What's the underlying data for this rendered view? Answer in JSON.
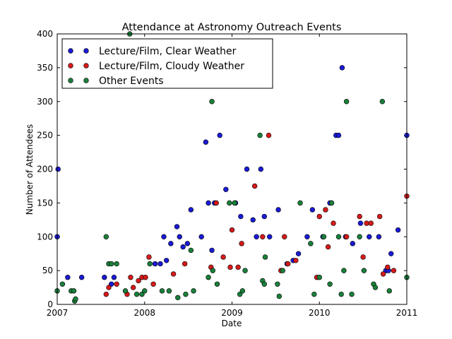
{
  "chart_data": {
    "type": "scatter",
    "title": "Attendance at Astronomy Outreach Events",
    "xlabel": "Date",
    "ylabel": "Number of Attendees",
    "xlim": [
      2007,
      2011
    ],
    "ylim": [
      0,
      400
    ],
    "x_ticks": [
      "2007",
      "2008",
      "2009",
      "2010",
      "2011"
    ],
    "y_ticks": [
      "0",
      "50",
      "100",
      "150",
      "200",
      "250",
      "300",
      "350",
      "400"
    ],
    "grid": false,
    "legend_position": "top-left",
    "series": [
      {
        "name": "Lecture/Film, Clear Weather",
        "color": "#1a1ad6",
        "points": [
          [
            2007.0,
            100
          ],
          [
            2007.01,
            200
          ],
          [
            2007.12,
            40
          ],
          [
            2007.28,
            40
          ],
          [
            2007.54,
            40
          ],
          [
            2007.62,
            30
          ],
          [
            2007.65,
            40
          ],
          [
            2008.12,
            60
          ],
          [
            2008.18,
            60
          ],
          [
            2008.22,
            100
          ],
          [
            2008.25,
            65
          ],
          [
            2008.3,
            90
          ],
          [
            2008.37,
            115
          ],
          [
            2008.4,
            100
          ],
          [
            2008.44,
            85
          ],
          [
            2008.49,
            90
          ],
          [
            2008.53,
            140
          ],
          [
            2008.65,
            100
          ],
          [
            2008.7,
            240
          ],
          [
            2008.73,
            150
          ],
          [
            2008.77,
            80
          ],
          [
            2008.8,
            150
          ],
          [
            2008.86,
            250
          ],
          [
            2008.93,
            170
          ],
          [
            2009.04,
            150
          ],
          [
            2009.1,
            130
          ],
          [
            2009.17,
            200
          ],
          [
            2009.24,
            125
          ],
          [
            2009.28,
            100
          ],
          [
            2009.33,
            200
          ],
          [
            2009.37,
            130
          ],
          [
            2009.43,
            100
          ],
          [
            2009.53,
            140
          ],
          [
            2009.63,
            60
          ],
          [
            2009.7,
            65
          ],
          [
            2009.76,
            75
          ],
          [
            2009.86,
            100
          ],
          [
            2009.92,
            140
          ],
          [
            2010.04,
            100
          ],
          [
            2010.12,
            150
          ],
          [
            2010.19,
            250
          ],
          [
            2010.22,
            250
          ],
          [
            2010.26,
            350
          ],
          [
            2010.3,
            100
          ],
          [
            2010.38,
            90
          ],
          [
            2010.47,
            120
          ],
          [
            2010.57,
            100
          ],
          [
            2010.68,
            100
          ],
          [
            2010.76,
            50
          ],
          [
            2010.79,
            50
          ],
          [
            2010.82,
            75
          ],
          [
            2010.9,
            110
          ],
          [
            2011.0,
            250
          ]
        ]
      },
      {
        "name": "Lecture/Film, Cloudy Weather",
        "color": "#d61a1a",
        "points": [
          [
            2007.56,
            15
          ],
          [
            2007.59,
            25
          ],
          [
            2007.68,
            30
          ],
          [
            2007.8,
            15
          ],
          [
            2007.84,
            40
          ],
          [
            2007.87,
            25
          ],
          [
            2007.93,
            35
          ],
          [
            2007.97,
            40
          ],
          [
            2008.01,
            40
          ],
          [
            2008.05,
            70
          ],
          [
            2008.1,
            30
          ],
          [
            2008.33,
            45
          ],
          [
            2008.46,
            60
          ],
          [
            2008.76,
            55
          ],
          [
            2008.82,
            150
          ],
          [
            2008.9,
            70
          ],
          [
            2008.98,
            55
          ],
          [
            2009.0,
            110
          ],
          [
            2009.07,
            55
          ],
          [
            2009.11,
            90
          ],
          [
            2009.26,
            175
          ],
          [
            2009.35,
            100
          ],
          [
            2009.42,
            250
          ],
          [
            2009.56,
            50
          ],
          [
            2009.6,
            100
          ],
          [
            2009.64,
            60
          ],
          [
            2009.73,
            65
          ],
          [
            2009.97,
            40
          ],
          [
            2010.0,
            130
          ],
          [
            2010.07,
            140
          ],
          [
            2010.1,
            85
          ],
          [
            2010.16,
            120
          ],
          [
            2010.31,
            100
          ],
          [
            2010.46,
            130
          ],
          [
            2010.5,
            70
          ],
          [
            2010.54,
            120
          ],
          [
            2010.59,
            120
          ],
          [
            2010.69,
            130
          ],
          [
            2010.73,
            45
          ],
          [
            2010.78,
            55
          ],
          [
            2010.85,
            50
          ],
          [
            2011.0,
            160
          ]
        ]
      },
      {
        "name": "Other Events",
        "color": "#1a7f3a",
        "points": [
          [
            2007.0,
            20
          ],
          [
            2007.06,
            30
          ],
          [
            2007.16,
            20
          ],
          [
            2007.19,
            20
          ],
          [
            2007.2,
            5
          ],
          [
            2007.21,
            8
          ],
          [
            2007.56,
            100
          ],
          [
            2007.59,
            60
          ],
          [
            2007.62,
            60
          ],
          [
            2007.68,
            60
          ],
          [
            2007.78,
            20
          ],
          [
            2007.83,
            400
          ],
          [
            2007.91,
            15
          ],
          [
            2007.97,
            15
          ],
          [
            2008.0,
            20
          ],
          [
            2008.06,
            60
          ],
          [
            2008.2,
            20
          ],
          [
            2008.28,
            20
          ],
          [
            2008.38,
            10
          ],
          [
            2008.47,
            15
          ],
          [
            2008.53,
            80
          ],
          [
            2008.56,
            20
          ],
          [
            2008.73,
            40
          ],
          [
            2008.77,
            300
          ],
          [
            2008.78,
            50
          ],
          [
            2008.83,
            30
          ],
          [
            2008.97,
            150
          ],
          [
            2009.03,
            150
          ],
          [
            2009.09,
            15
          ],
          [
            2009.12,
            20
          ],
          [
            2009.15,
            50
          ],
          [
            2009.32,
            250
          ],
          [
            2009.35,
            35
          ],
          [
            2009.37,
            30
          ],
          [
            2009.38,
            70
          ],
          [
            2009.52,
            30
          ],
          [
            2009.54,
            12
          ],
          [
            2009.58,
            50
          ],
          [
            2009.78,
            150
          ],
          [
            2009.9,
            90
          ],
          [
            2009.94,
            15
          ],
          [
            2010.0,
            40
          ],
          [
            2010.05,
            100
          ],
          [
            2010.12,
            30
          ],
          [
            2010.14,
            150
          ],
          [
            2010.22,
            100
          ],
          [
            2010.25,
            15
          ],
          [
            2010.28,
            50
          ],
          [
            2010.31,
            300
          ],
          [
            2010.37,
            15
          ],
          [
            2010.46,
            100
          ],
          [
            2010.51,
            50
          ],
          [
            2010.62,
            30
          ],
          [
            2010.64,
            25
          ],
          [
            2010.72,
            300
          ],
          [
            2010.8,
            20
          ],
          [
            2011.0,
            40
          ]
        ]
      }
    ]
  }
}
